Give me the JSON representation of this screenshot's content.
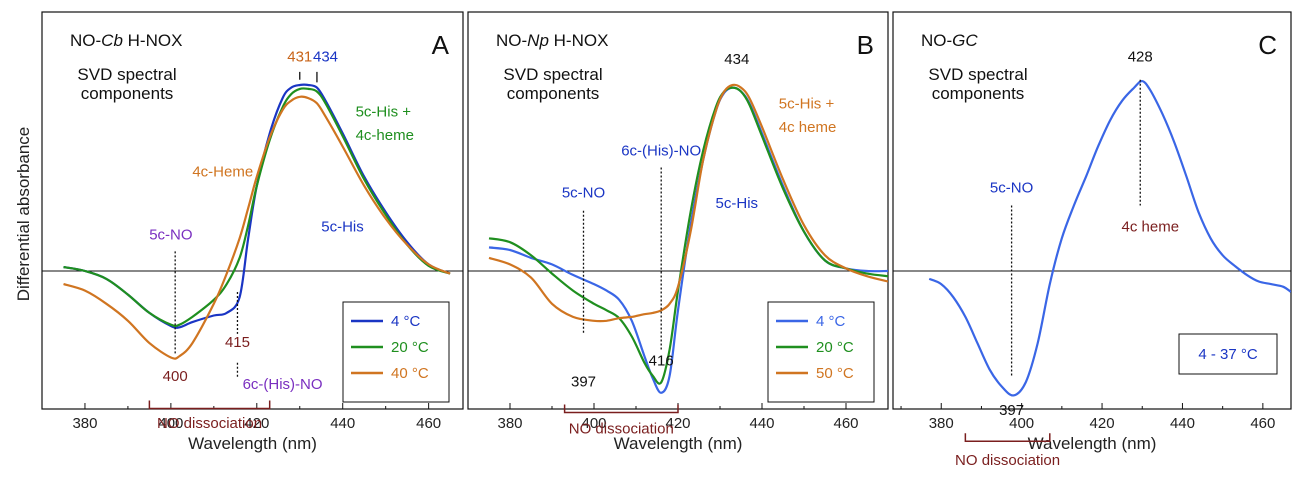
{
  "y_axis_label": "Differential absorbance",
  "chart_data": [
    {
      "type": "line",
      "panel_letter": "A",
      "title_parts": [
        "NO-",
        "Cb",
        " H-NOX"
      ],
      "subtitle_lines": [
        "SVD spectral",
        "components"
      ],
      "xlabel": "Wavelength  (nm)",
      "xlim": [
        370,
        468
      ],
      "ylim": [
        -1.3,
        1.45
      ],
      "xticks": [
        380,
        400,
        420,
        440,
        460
      ],
      "x": [
        375,
        380,
        385,
        390,
        395,
        400,
        402,
        405,
        410,
        413,
        416,
        418,
        420,
        423,
        426,
        428,
        430,
        432,
        434,
        436,
        440,
        445,
        450,
        455,
        460,
        465
      ],
      "series": [
        {
          "name": "4 °C",
          "color": "#1a35c4",
          "values": [
            0.03,
            0.0,
            -0.06,
            -0.18,
            -0.32,
            -0.42,
            -0.43,
            -0.39,
            -0.34,
            -0.32,
            -0.2,
            0.25,
            0.65,
            1.05,
            1.32,
            1.4,
            1.42,
            1.42,
            1.4,
            1.3,
            1.05,
            0.72,
            0.45,
            0.22,
            0.05,
            -0.02
          ]
        },
        {
          "name": "20 °C",
          "color": "#1f8f1f",
          "values": [
            0.03,
            0.0,
            -0.06,
            -0.18,
            -0.32,
            -0.41,
            -0.41,
            -0.35,
            -0.22,
            -0.1,
            0.1,
            0.35,
            0.65,
            1.0,
            1.25,
            1.35,
            1.39,
            1.39,
            1.37,
            1.28,
            1.03,
            0.7,
            0.43,
            0.2,
            0.04,
            -0.02
          ]
        },
        {
          "name": "40 °C",
          "color": "#d07521",
          "values": [
            -0.1,
            -0.15,
            -0.25,
            -0.38,
            -0.55,
            -0.66,
            -0.65,
            -0.55,
            -0.25,
            -0.02,
            0.25,
            0.48,
            0.72,
            1.02,
            1.23,
            1.3,
            1.33,
            1.32,
            1.28,
            1.18,
            0.95,
            0.65,
            0.4,
            0.2,
            0.05,
            -0.02
          ]
        }
      ],
      "legend": {
        "entries": [
          "4 °C",
          "20 °C",
          "40 °C"
        ],
        "placement": "bottom-right"
      },
      "annotations": [
        {
          "text": "431",
          "x": 430,
          "y": 1.6,
          "color": "#c86419",
          "marker": {
            "x": 430,
            "y1": 1.52,
            "y2": 1.46,
            "style": "solid"
          }
        },
        {
          "text": "434",
          "x": 436,
          "y": 1.6,
          "color": "#1a35c4",
          "marker": {
            "x": 434,
            "y1": 1.52,
            "y2": 1.44,
            "style": "solid"
          }
        },
        {
          "text": "5c-His +",
          "x": 443,
          "y": 1.18,
          "color": "#1f8f1f",
          "anchor": "start",
          "size": 17
        },
        {
          "text": "4c-heme",
          "x": 443,
          "y": 1.0,
          "color": "#1f8f1f",
          "anchor": "start",
          "size": 17
        },
        {
          "text": "4c-Heme",
          "x": 405,
          "y": 0.72,
          "color": "#d07521",
          "anchor": "start",
          "size": 17
        },
        {
          "text": "5c-His",
          "x": 435,
          "y": 0.3,
          "color": "#1a35c4",
          "anchor": "start",
          "size": 17
        },
        {
          "text": "5c-NO",
          "x": 400,
          "y": 0.24,
          "color": "#7a2fc0",
          "marker": {
            "x": 401,
            "y1": 0.15,
            "y2": -0.63,
            "style": "dotted"
          }
        },
        {
          "text": "400",
          "x": 401,
          "y": -0.84,
          "color": "#7a1e1e"
        },
        {
          "text": "415",
          "x": 415.5,
          "y": -0.58,
          "color": "#7a1e1e",
          "marker": {
            "x": 415.5,
            "y1": -0.16,
            "y2": -0.48,
            "style": "dotted"
          }
        },
        {
          "text": "",
          "x": 415.5,
          "y": -0.6,
          "color": "#7a1e1e",
          "marker": {
            "x": 415.5,
            "y1": -0.7,
            "y2": -0.82,
            "style": "dotted"
          }
        },
        {
          "text": "6c-(His)-NO",
          "x": 426,
          "y": -0.9,
          "color": "#7a2fc0",
          "size": 17
        },
        {
          "text": "NO dissociation",
          "x": 409,
          "y": -1.2,
          "color": "#7a1e1e"
        }
      ],
      "bracket": {
        "x1": 395,
        "x2": 423,
        "y": -1.05,
        "color": "#7a1e1e"
      }
    },
    {
      "type": "line",
      "panel_letter": "B",
      "title_parts": [
        "NO-",
        "Np",
        " H-NOX"
      ],
      "subtitle_lines": [
        "SVD spectral",
        "components"
      ],
      "xlabel": "Wavelength  (nm)",
      "xlim": [
        370,
        470
      ],
      "ylim": [
        -1.3,
        1.45
      ],
      "xticks": [
        380,
        400,
        420,
        440,
        460
      ],
      "x": [
        375,
        380,
        385,
        390,
        395,
        400,
        403,
        406,
        409,
        412,
        414,
        416,
        418,
        420,
        423,
        426,
        429,
        431,
        433,
        435,
        437,
        440,
        445,
        450,
        455,
        460,
        465,
        470
      ],
      "series": [
        {
          "name": "4 °C",
          "color": "#3a66e6",
          "values": [
            0.18,
            0.16,
            0.1,
            0.05,
            -0.03,
            -0.1,
            -0.15,
            -0.22,
            -0.38,
            -0.65,
            -0.82,
            -0.93,
            -0.8,
            -0.3,
            0.35,
            0.85,
            1.22,
            1.36,
            1.4,
            1.37,
            1.28,
            1.05,
            0.65,
            0.3,
            0.08,
            0.02,
            0.0,
            0.0
          ]
        },
        {
          "name": "20 °C",
          "color": "#1f8f1f",
          "values": [
            0.25,
            0.22,
            0.12,
            -0.02,
            -0.15,
            -0.25,
            -0.3,
            -0.36,
            -0.5,
            -0.7,
            -0.8,
            -0.85,
            -0.6,
            -0.15,
            0.45,
            0.92,
            1.25,
            1.37,
            1.4,
            1.37,
            1.27,
            1.03,
            0.63,
            0.3,
            0.08,
            0.02,
            -0.02,
            -0.04
          ]
        },
        {
          "name": "50 °C",
          "color": "#d07521",
          "values": [
            0.1,
            0.05,
            -0.05,
            -0.25,
            -0.35,
            -0.38,
            -0.38,
            -0.36,
            -0.35,
            -0.33,
            -0.32,
            -0.3,
            -0.25,
            -0.12,
            0.3,
            0.85,
            1.22,
            1.37,
            1.42,
            1.4,
            1.32,
            1.1,
            0.7,
            0.35,
            0.12,
            0.02,
            -0.04,
            -0.08
          ]
        }
      ],
      "legend": {
        "entries": [
          "4 °C",
          "20 °C",
          "50 °C"
        ],
        "placement": "bottom-right"
      },
      "annotations": [
        {
          "text": "434",
          "x": 434,
          "y": 1.58,
          "color": "#111111"
        },
        {
          "text": "5c-His +",
          "x": 444,
          "y": 1.24,
          "color": "#d07521",
          "anchor": "start",
          "size": 17
        },
        {
          "text": "4c heme",
          "x": 444,
          "y": 1.06,
          "color": "#d07521",
          "anchor": "start",
          "size": 17
        },
        {
          "text": "6c-(His)-NO",
          "x": 416,
          "y": 0.88,
          "color": "#1a35c4",
          "size": 17,
          "marker": {
            "x": 416,
            "y1": 0.79,
            "y2": -0.6,
            "style": "dotted"
          }
        },
        {
          "text": "5c-NO",
          "x": 397.5,
          "y": 0.56,
          "color": "#1a35c4",
          "size": 17,
          "marker": {
            "x": 397.5,
            "y1": 0.46,
            "y2": -0.48,
            "style": "dotted"
          }
        },
        {
          "text": "5c-His",
          "x": 434,
          "y": 0.48,
          "color": "#1a35c4",
          "size": 13
        },
        {
          "text": "416",
          "x": 416,
          "y": -0.72,
          "color": "#111111"
        },
        {
          "text": "397",
          "x": 397.5,
          "y": -0.88,
          "color": "#111111"
        },
        {
          "text": "NO dissociation",
          "x": 406.5,
          "y": -1.24,
          "color": "#7a1e1e"
        }
      ],
      "bracket": {
        "x1": 393,
        "x2": 420,
        "y": -1.08,
        "color": "#7a1e1e"
      }
    },
    {
      "type": "line",
      "panel_letter": "C",
      "title_parts": [
        "NO-",
        "GC",
        ""
      ],
      "subtitle_lines": [
        "SVD spectral",
        "components"
      ],
      "xlabel": "Wavelength  (nm)",
      "xlim": [
        368,
        467
      ],
      "ylim": [
        -1.3,
        1.45
      ],
      "xticks": [
        380,
        400,
        420,
        440,
        460
      ],
      "x": [
        377,
        380,
        383,
        386,
        389,
        392,
        395,
        398,
        401,
        404,
        407,
        410,
        413,
        416,
        419,
        422,
        425,
        428,
        430,
        432,
        435,
        438,
        441,
        444,
        447,
        450,
        453,
        456,
        459,
        462,
        465,
        467
      ],
      "series": [
        {
          "name": "4 - 37 °C",
          "color": "#3a66e6",
          "values": [
            -0.06,
            -0.1,
            -0.2,
            -0.35,
            -0.55,
            -0.75,
            -0.88,
            -0.95,
            -0.85,
            -0.55,
            -0.1,
            0.25,
            0.5,
            0.72,
            0.95,
            1.15,
            1.3,
            1.4,
            1.45,
            1.38,
            1.2,
            0.98,
            0.72,
            0.45,
            0.25,
            0.12,
            0.04,
            -0.03,
            -0.08,
            -0.1,
            -0.12,
            -0.16
          ]
        }
      ],
      "legend": {
        "entries": [
          "4 - 37 °C"
        ],
        "placement": "bottom-right",
        "text_color": "#1a35c4",
        "no_swatch": true
      },
      "annotations": [
        {
          "text": "428",
          "x": 429.5,
          "y": 1.6,
          "color": "#111111"
        },
        {
          "text": "",
          "x": 429.5,
          "y": 1.2,
          "color": "#111111",
          "marker": {
            "x": 429.5,
            "y1": 1.46,
            "y2": 0.5,
            "style": "dotted"
          }
        },
        {
          "text": "4c heme",
          "x": 432,
          "y": 0.3,
          "color": "#7a1e1e",
          "size": 17
        },
        {
          "text": "5c-NO",
          "x": 397.5,
          "y": 0.6,
          "color": "#1a35c4",
          "size": 17,
          "marker": {
            "x": 397.5,
            "y1": 0.5,
            "y2": -0.8,
            "style": "dotted"
          }
        },
        {
          "text": "397",
          "x": 397.5,
          "y": -1.1,
          "color": "#111111"
        },
        {
          "text": "NO dissociation",
          "x": 396.5,
          "y": -1.48,
          "color": "#7a1e1e"
        }
      ],
      "bracket": {
        "x1": 386,
        "x2": 407,
        "y": -1.3,
        "color": "#7a1e1e"
      }
    }
  ]
}
